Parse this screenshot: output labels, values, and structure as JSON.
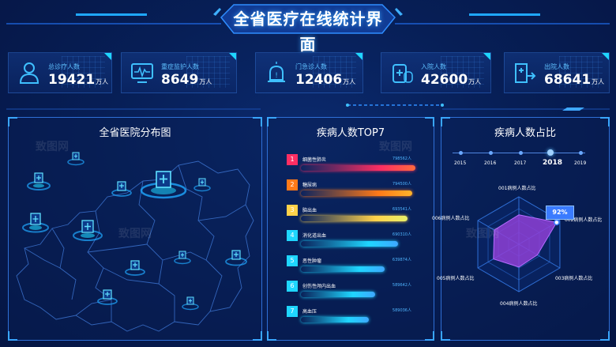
{
  "header": {
    "title": "全省医疗在线统计界面"
  },
  "stats": [
    {
      "label": "总诊疗人数",
      "value": "19421",
      "unit": "万人",
      "icon": "person-icon"
    },
    {
      "label": "重症监护人数",
      "value": "8649",
      "unit": "万人",
      "icon": "monitor-icon"
    },
    {
      "label": "门急诊人数",
      "value": "12406",
      "unit": "万人",
      "icon": "siren-icon"
    },
    {
      "label": "入院人数",
      "value": "42600",
      "unit": "万人",
      "icon": "medicine-icon"
    },
    {
      "label": "出院人数",
      "value": "68641",
      "unit": "万人",
      "icon": "discharge-icon"
    }
  ],
  "map_panel": {
    "title": "全省医院分布图"
  },
  "top7_panel": {
    "title": "疾病人数TOP7",
    "items": [
      {
        "rank": "1",
        "name": "细菌性肺炎",
        "value": "798562人",
        "fraction": 1.0,
        "color": "#ff2e63",
        "grad": "#ff6a3d"
      },
      {
        "rank": "2",
        "name": "糖尿病",
        "value": "794500人",
        "fraction": 0.97,
        "color": "#ff7a18",
        "grad": "#ffb42b"
      },
      {
        "rank": "3",
        "name": "脑出血",
        "value": "693541人",
        "fraction": 0.93,
        "color": "#ffd24a",
        "grad": "#e8f06a"
      },
      {
        "rank": "4",
        "name": "消化道出血",
        "value": "690310人",
        "fraction": 0.85,
        "color": "#1fd6ff",
        "grad": "#3fa8ff"
      },
      {
        "rank": "5",
        "name": "恶性肿瘤",
        "value": "639874人",
        "fraction": 0.73,
        "color": "#1fd6ff",
        "grad": "#3fa8ff"
      },
      {
        "rank": "6",
        "name": "创伤性颅内出血",
        "value": "589642人",
        "fraction": 0.65,
        "color": "#1fd6ff",
        "grad": "#3fa8ff"
      },
      {
        "rank": "7",
        "name": "高血压",
        "value": "589036人",
        "fraction": 0.59,
        "color": "#1fd6ff",
        "grad": "#3fa8ff"
      }
    ]
  },
  "ratio_panel": {
    "title": "疾病人数占比",
    "years": [
      "2015",
      "2016",
      "2017",
      "2018",
      "2019"
    ],
    "selected_year": "2018",
    "badge": "92%",
    "axes": [
      "001病例人数占比",
      "002病例人数占比",
      "003病例人数占比",
      "004病例人数占比",
      "005病例人数占比",
      "006病例人数占比"
    ]
  },
  "chart_data": {
    "type": "radar",
    "categories": [
      "001病例人数占比",
      "002病例人数占比",
      "003病例人数占比",
      "004病例人数占比",
      "005病例人数占比",
      "006病例人数占比"
    ],
    "values": [
      0.62,
      0.92,
      0.45,
      0.48,
      0.62,
      0.6
    ],
    "max": 1
  },
  "colors": {
    "accent": "#1fd6ff",
    "panel_border": "#2f6fd6",
    "radar_fill": "#8e3fd6"
  }
}
